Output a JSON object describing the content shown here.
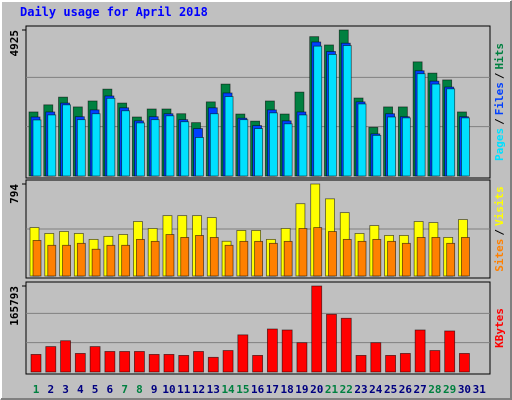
{
  "chart_data": [
    {
      "type": "bar",
      "title": "Daily usage for April 2018",
      "legend_separator": "/",
      "ylim": [
        0,
        4925
      ],
      "yticks": [
        4925
      ],
      "grid_divisions": 3,
      "series": [
        {
          "name": "Hits",
          "color": "#008040",
          "values": [
            2160,
            2400,
            2660,
            2330,
            2530,
            2930,
            2460,
            1990,
            2260,
            2260,
            2100,
            1800,
            2500,
            3100,
            2090,
            1850,
            2530,
            2090,
            2830,
            4700,
            4420,
            4925,
            2630,
            1640,
            2330,
            2330,
            3850,
            3470,
            3240,
            2160,
            0
          ]
        },
        {
          "name": "Files",
          "color": "#0040ff",
          "values": [
            1990,
            2160,
            2460,
            2000,
            2230,
            2700,
            2300,
            1860,
            2000,
            2100,
            1900,
            1600,
            2300,
            2800,
            1950,
            1700,
            2230,
            1860,
            2160,
            4520,
            4200,
            4480,
            2500,
            1420,
            2100,
            2000,
            3550,
            3200,
            3000,
            2000,
            0
          ]
        },
        {
          "name": "Pages",
          "color": "#00e0ff",
          "values": [
            1890,
            2060,
            2400,
            1900,
            2100,
            2620,
            2200,
            1790,
            1900,
            2030,
            1830,
            1300,
            2100,
            2680,
            1900,
            1600,
            2130,
            1760,
            2060,
            4380,
            4100,
            4400,
            2430,
            1370,
            1990,
            1960,
            3450,
            3100,
            2940,
            1960,
            0
          ]
        }
      ]
    },
    {
      "type": "bar",
      "legend_separator": "/",
      "ylim": [
        0,
        794
      ],
      "yticks": [
        794
      ],
      "grid_divisions": 2,
      "series": [
        {
          "name": "Visits",
          "color": "#ffff00",
          "values": [
            418,
            367,
            384,
            367,
            316,
            342,
            358,
            470,
            410,
            521,
            521,
            521,
            504,
            300,
            393,
            393,
            316,
            410,
            624,
            794,
            666,
            547,
            367,
            435,
            350,
            350,
            470,
            461,
            333,
            487,
            0
          ]
        },
        {
          "name": "Sites",
          "color": "#ff8000",
          "values": [
            307,
            265,
            265,
            282,
            231,
            265,
            265,
            316,
            299,
            358,
            333,
            350,
            333,
            265,
            299,
            299,
            282,
            299,
            410,
            418,
            384,
            316,
            299,
            316,
            299,
            282,
            333,
            333,
            282,
            333,
            0
          ]
        }
      ]
    },
    {
      "type": "bar",
      "ylim": [
        0,
        165793
      ],
      "yticks": [
        165793
      ],
      "grid_divisions": 3,
      "categories": [
        "1",
        "2",
        "3",
        "4",
        "5",
        "6",
        "7",
        "8",
        "9",
        "10",
        "11",
        "12",
        "13",
        "14",
        "15",
        "16",
        "17",
        "18",
        "19",
        "20",
        "21",
        "22",
        "23",
        "24",
        "25",
        "26",
        "27",
        "28",
        "29",
        "30",
        "31"
      ],
      "category_colors": [
        "#008040",
        "#000080",
        "#000080",
        "#000080",
        "#000080",
        "#000080",
        "#008040",
        "#008040",
        "#000080",
        "#000080",
        "#000080",
        "#000080",
        "#000080",
        "#008040",
        "#008040",
        "#000080",
        "#000080",
        "#000080",
        "#000080",
        "#000080",
        "#008040",
        "#008040",
        "#000080",
        "#000080",
        "#000080",
        "#000080",
        "#000080",
        "#008040",
        "#008040",
        "#000080",
        "#000080"
      ],
      "series": [
        {
          "name": "KBytes",
          "color": "#ff0000",
          "values": [
            33900,
            49000,
            60300,
            35800,
            49000,
            39600,
            39600,
            39600,
            33900,
            33900,
            32000,
            39600,
            28300,
            41400,
            71600,
            32000,
            82900,
            81000,
            56500,
            165793,
            111200,
            103600,
            32000,
            56500,
            32000,
            35800,
            81000,
            41400,
            79100,
            35800,
            0
          ]
        }
      ]
    }
  ]
}
